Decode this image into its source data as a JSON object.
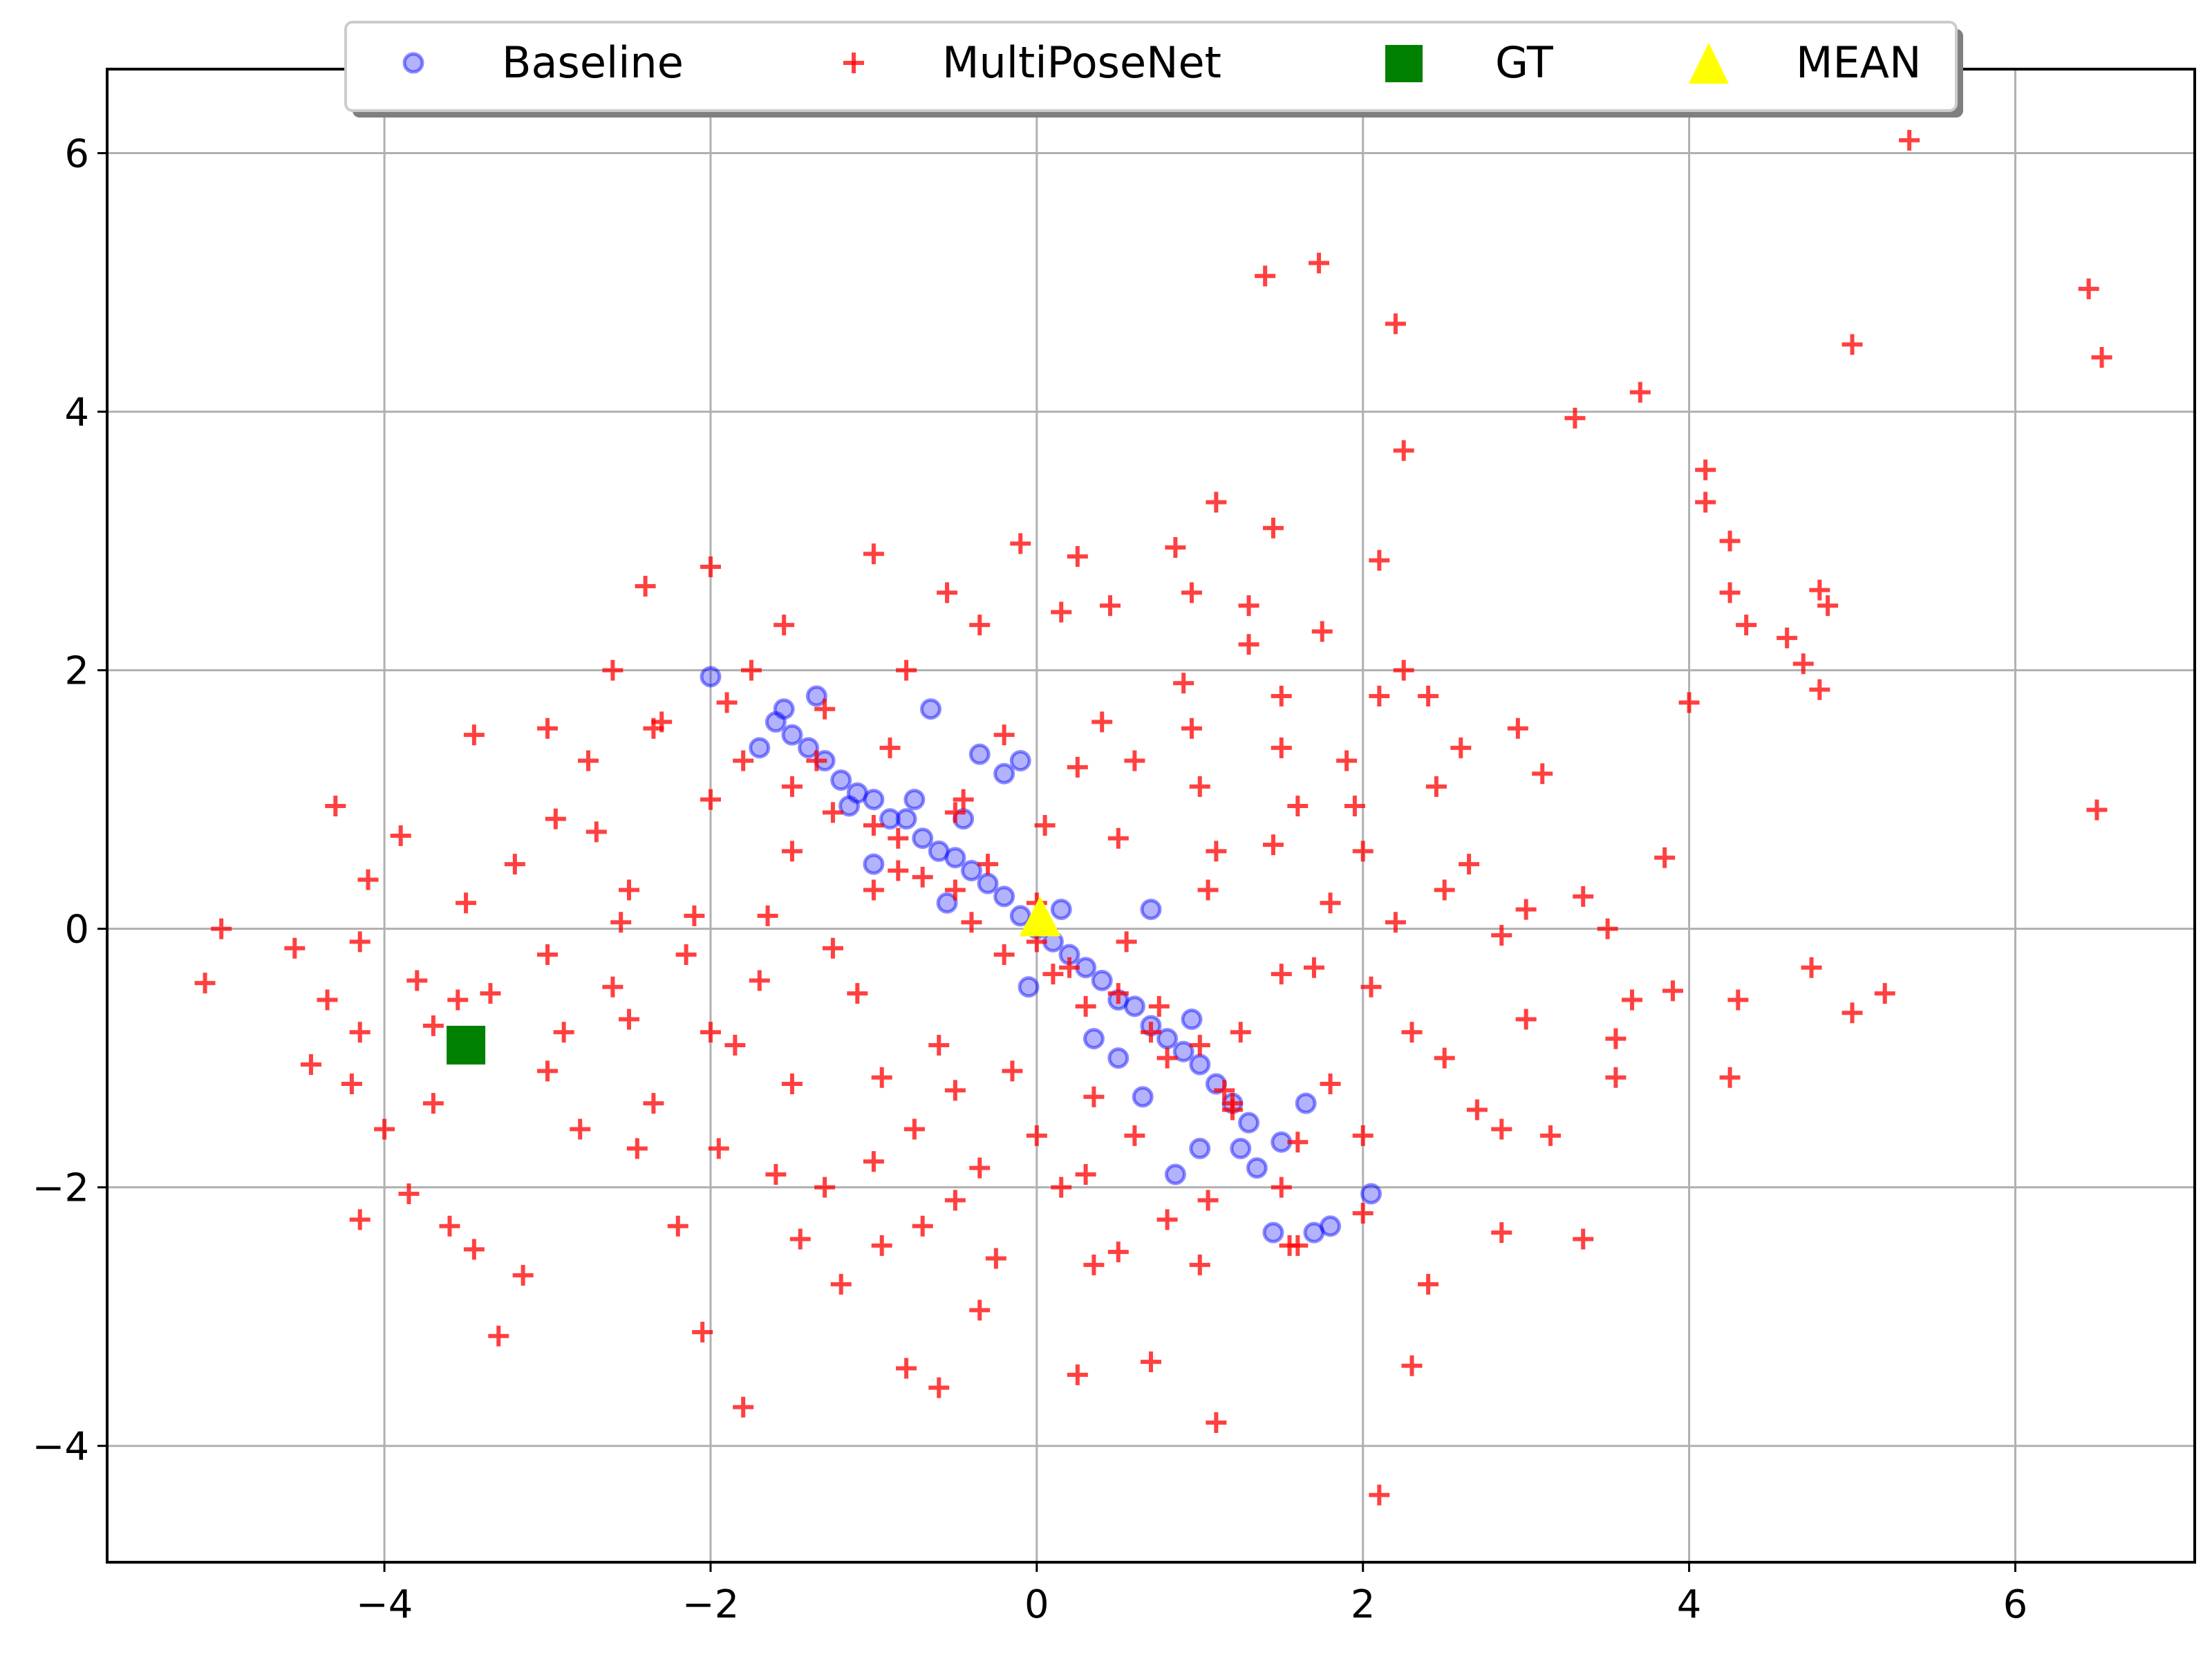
{
  "chart_data": {
    "type": "scatter",
    "title": "",
    "xlabel": "",
    "ylabel": "",
    "xlim": [
      -5.7,
      7.1
    ],
    "ylim": [
      -4.9,
      6.65
    ],
    "xticks": [
      -4,
      -2,
      0,
      2,
      4,
      6
    ],
    "yticks": [
      -4,
      -2,
      0,
      2,
      4,
      6
    ],
    "xtick_labels": [
      "−4",
      "−2",
      "0",
      "2",
      "4",
      "6"
    ],
    "ytick_labels": [
      "−4",
      "−2",
      "0",
      "2",
      "4",
      "6"
    ],
    "grid": true,
    "legend_position": "top-center",
    "legend": [
      "Baseline",
      "MultiPoseNet",
      "GT",
      "MEAN"
    ],
    "series": [
      {
        "name": "Baseline",
        "marker": "circle",
        "color": "#0000ff",
        "alpha": 0.3,
        "points": [
          [
            -2.0,
            1.95
          ],
          [
            -1.6,
            1.6
          ],
          [
            -1.5,
            1.5
          ],
          [
            -1.4,
            1.4
          ],
          [
            -1.55,
            1.7
          ],
          [
            -1.3,
            1.3
          ],
          [
            -1.2,
            1.15
          ],
          [
            -1.1,
            1.05
          ],
          [
            -1.0,
            1.0
          ],
          [
            -0.9,
            0.85
          ],
          [
            -0.8,
            0.85
          ],
          [
            -0.7,
            0.7
          ],
          [
            -0.6,
            0.6
          ],
          [
            -0.5,
            0.55
          ],
          [
            -0.4,
            0.45
          ],
          [
            -0.3,
            0.35
          ],
          [
            -0.2,
            0.25
          ],
          [
            -0.1,
            0.1
          ],
          [
            0.0,
            0.0
          ],
          [
            0.1,
            -0.1
          ],
          [
            0.2,
            -0.2
          ],
          [
            0.3,
            -0.3
          ],
          [
            0.4,
            -0.4
          ],
          [
            0.5,
            -0.55
          ],
          [
            0.6,
            -0.6
          ],
          [
            0.7,
            -0.75
          ],
          [
            0.8,
            -0.85
          ],
          [
            0.9,
            -0.95
          ],
          [
            1.0,
            -1.05
          ],
          [
            1.1,
            -1.2
          ],
          [
            1.2,
            -1.35
          ],
          [
            1.3,
            -1.5
          ],
          [
            1.35,
            -1.85
          ],
          [
            1.45,
            -2.35
          ],
          [
            1.7,
            -2.35
          ],
          [
            1.8,
            -2.3
          ],
          [
            2.05,
            -2.05
          ],
          [
            -1.35,
            1.8
          ],
          [
            -0.65,
            1.7
          ],
          [
            -0.35,
            1.35
          ],
          [
            -0.1,
            1.3
          ],
          [
            0.7,
            0.15
          ],
          [
            0.85,
            -1.9
          ],
          [
            1.0,
            -1.7
          ],
          [
            1.65,
            -1.35
          ],
          [
            1.5,
            -1.65
          ],
          [
            -0.2,
            1.2
          ],
          [
            -1.7,
            1.4
          ],
          [
            -1.0,
            0.5
          ],
          [
            0.5,
            -1.0
          ],
          [
            -0.75,
            1.0
          ],
          [
            0.35,
            -0.85
          ],
          [
            0.15,
            0.15
          ],
          [
            -0.55,
            0.2
          ],
          [
            0.65,
            -1.3
          ],
          [
            1.25,
            -1.7
          ],
          [
            -0.05,
            -0.45
          ],
          [
            -0.45,
            0.85
          ],
          [
            0.95,
            -0.7
          ],
          [
            -1.15,
            0.95
          ]
        ]
      },
      {
        "name": "MultiPoseNet",
        "marker": "plus",
        "color": "#ff0000",
        "alpha": 0.75,
        "points": [
          [
            5.35,
            6.1
          ],
          [
            1.4,
            5.05
          ],
          [
            1.73,
            5.15
          ],
          [
            2.2,
            4.68
          ],
          [
            5.0,
            4.52
          ],
          [
            6.45,
            4.95
          ],
          [
            6.53,
            4.42
          ],
          [
            3.7,
            4.15
          ],
          [
            3.3,
            3.95
          ],
          [
            2.25,
            3.7
          ],
          [
            4.1,
            3.55
          ],
          [
            4.1,
            3.3
          ],
          [
            4.25,
            3.0
          ],
          [
            1.1,
            3.3
          ],
          [
            1.45,
            3.1
          ],
          [
            2.1,
            2.85
          ],
          [
            4.25,
            2.6
          ],
          [
            4.8,
            2.62
          ],
          [
            4.85,
            2.5
          ],
          [
            4.35,
            2.35
          ],
          [
            4.6,
            2.25
          ],
          [
            4.7,
            2.05
          ],
          [
            4.8,
            1.85
          ],
          [
            6.5,
            0.92
          ],
          [
            5.2,
            -0.5
          ],
          [
            5.0,
            -0.65
          ],
          [
            4.75,
            -0.3
          ],
          [
            4.3,
            -0.55
          ],
          [
            4.25,
            -1.15
          ],
          [
            3.85,
            0.55
          ],
          [
            3.9,
            -0.48
          ],
          [
            3.55,
            -0.85
          ],
          [
            3.55,
            -1.15
          ],
          [
            3.35,
            0.25
          ],
          [
            3.35,
            -2.4
          ],
          [
            3.15,
            -1.6
          ],
          [
            2.85,
            -2.35
          ],
          [
            2.4,
            -2.75
          ],
          [
            2.3,
            -3.38
          ],
          [
            2.1,
            -4.38
          ],
          [
            1.1,
            -3.82
          ],
          [
            0.7,
            -3.35
          ],
          [
            -0.6,
            -3.55
          ],
          [
            -0.8,
            -3.4
          ],
          [
            -1.8,
            -3.7
          ],
          [
            -2.05,
            -3.12
          ],
          [
            -3.3,
            -3.15
          ],
          [
            -3.15,
            -2.68
          ],
          [
            -3.45,
            -2.48
          ],
          [
            -4.15,
            -2.25
          ],
          [
            -3.85,
            -2.05
          ],
          [
            -5.1,
            -0.42
          ],
          [
            -5.0,
            0.0
          ],
          [
            -4.45,
            -1.05
          ],
          [
            -4.2,
            -1.2
          ],
          [
            -4.3,
            0.95
          ],
          [
            -3.9,
            0.72
          ],
          [
            -3.45,
            1.5
          ],
          [
            -3.0,
            1.55
          ],
          [
            -2.4,
            2.65
          ],
          [
            -2.0,
            2.8
          ],
          [
            -1.0,
            2.9
          ],
          [
            -0.1,
            2.98
          ],
          [
            0.25,
            2.88
          ],
          [
            0.45,
            2.5
          ],
          [
            0.85,
            2.95
          ],
          [
            1.75,
            2.3
          ],
          [
            2.25,
            2.0
          ],
          [
            1.3,
            2.5
          ],
          [
            1.5,
            1.8
          ],
          [
            2.95,
            1.55
          ],
          [
            2.6,
            1.4
          ],
          [
            -0.55,
            2.6
          ],
          [
            -1.55,
            2.35
          ],
          [
            -2.6,
            2.0
          ],
          [
            -1.75,
            2.0
          ],
          [
            -0.35,
            2.35
          ],
          [
            0.15,
            2.45
          ],
          [
            0.95,
            2.6
          ],
          [
            -4.55,
            -0.15
          ],
          [
            -3.7,
            -1.35
          ],
          [
            -3.0,
            -1.1
          ],
          [
            -2.5,
            -0.7
          ],
          [
            -2.0,
            -0.8
          ],
          [
            -1.5,
            -1.2
          ],
          [
            -1.0,
            -1.8
          ],
          [
            -0.5,
            -2.1
          ],
          [
            0.0,
            -1.6
          ],
          [
            0.5,
            -2.5
          ],
          [
            1.0,
            -2.6
          ],
          [
            1.5,
            -2.0
          ],
          [
            2.0,
            -1.6
          ],
          [
            2.5,
            -1.0
          ],
          [
            3.0,
            -0.7
          ],
          [
            -3.5,
            0.2
          ],
          [
            -3.0,
            -0.2
          ],
          [
            -2.5,
            0.3
          ],
          [
            -2.0,
            1.0
          ],
          [
            -1.5,
            0.6
          ],
          [
            -1.0,
            0.3
          ],
          [
            -0.5,
            0.9
          ],
          [
            0.0,
            0.2
          ],
          [
            0.5,
            0.7
          ],
          [
            1.0,
            1.1
          ],
          [
            1.5,
            1.4
          ],
          [
            2.0,
            0.6
          ],
          [
            2.5,
            0.3
          ],
          [
            3.0,
            0.15
          ],
          [
            -2.8,
            -1.55
          ],
          [
            -2.2,
            -2.3
          ],
          [
            -1.6,
            -1.9
          ],
          [
            -1.2,
            -2.75
          ],
          [
            -0.7,
            -2.3
          ],
          [
            -0.25,
            -2.55
          ],
          [
            0.3,
            -1.9
          ],
          [
            0.8,
            -2.25
          ],
          [
            1.2,
            -1.35
          ],
          [
            1.8,
            -1.2
          ],
          [
            2.3,
            -0.8
          ],
          [
            2.7,
            -1.4
          ],
          [
            -2.3,
            1.6
          ],
          [
            -1.8,
            1.3
          ],
          [
            -1.3,
            1.7
          ],
          [
            -0.8,
            2.0
          ],
          [
            -0.2,
            1.5
          ],
          [
            0.4,
            1.6
          ],
          [
            0.9,
            1.9
          ],
          [
            1.3,
            2.2
          ],
          [
            1.9,
            1.3
          ],
          [
            2.4,
            1.8
          ],
          [
            -3.2,
            0.5
          ],
          [
            -2.7,
            0.75
          ],
          [
            -2.1,
            0.1
          ],
          [
            -1.7,
            -0.4
          ],
          [
            -1.1,
            -0.5
          ],
          [
            -0.6,
            -0.9
          ],
          [
            -0.15,
            -1.1
          ],
          [
            0.35,
            -1.3
          ],
          [
            0.75,
            -0.6
          ],
          [
            1.25,
            -0.8
          ],
          [
            1.7,
            -0.3
          ],
          [
            2.2,
            0.05
          ],
          [
            2.65,
            0.5
          ],
          [
            -4.1,
            0.38
          ],
          [
            -3.8,
            -0.4
          ],
          [
            -2.9,
            -0.8
          ],
          [
            -2.35,
            -1.35
          ],
          [
            -1.95,
            -1.7
          ],
          [
            -1.45,
            -2.4
          ],
          [
            -0.95,
            -2.45
          ],
          [
            -0.35,
            -1.85
          ],
          [
            0.15,
            -2.0
          ],
          [
            0.6,
            -1.6
          ],
          [
            1.05,
            -2.1
          ],
          [
            1.55,
            -2.45
          ],
          [
            2.0,
            -2.2
          ],
          [
            -2.6,
            -0.45
          ],
          [
            -2.15,
            -0.2
          ],
          [
            -1.65,
            0.1
          ],
          [
            -1.25,
            -0.15
          ],
          [
            -0.85,
            0.45
          ],
          [
            -0.4,
            0.05
          ],
          [
            0.1,
            -0.35
          ],
          [
            0.55,
            -0.1
          ],
          [
            1.05,
            0.3
          ],
          [
            1.45,
            0.65
          ],
          [
            1.95,
            0.95
          ],
          [
            2.45,
            1.1
          ],
          [
            -0.9,
            1.4
          ],
          [
            -0.45,
            1.0
          ],
          [
            0.05,
            0.8
          ],
          [
            0.6,
            1.3
          ],
          [
            1.1,
            0.6
          ],
          [
            1.6,
            0.95
          ],
          [
            -1.25,
            0.9
          ],
          [
            -0.7,
            0.4
          ],
          [
            -0.2,
            -0.2
          ],
          [
            0.3,
            -0.6
          ],
          [
            0.8,
            -1.0
          ],
          [
            1.2,
            -1.4
          ],
          [
            -1.5,
            1.1
          ],
          [
            -1.0,
            0.8
          ],
          [
            -0.5,
            0.3
          ],
          [
            0.0,
            -0.1
          ],
          [
            0.5,
            -0.5
          ],
          [
            1.0,
            -0.9
          ],
          [
            -1.9,
            1.75
          ],
          [
            -1.35,
            1.3
          ],
          [
            -0.85,
            0.7
          ],
          [
            -0.3,
            0.5
          ],
          [
            0.2,
            -0.3
          ],
          [
            0.7,
            -0.8
          ],
          [
            1.15,
            -1.25
          ],
          [
            1.6,
            -1.65
          ],
          [
            -3.6,
            -2.3
          ],
          [
            -4.15,
            -0.8
          ],
          [
            -2.95,
            0.85
          ],
          [
            -3.55,
            -0.55
          ],
          [
            0.25,
            -3.45
          ],
          [
            -0.35,
            -2.95
          ],
          [
            1.6,
            -2.45
          ],
          [
            -4.0,
            -1.55
          ],
          [
            -4.35,
            -0.55
          ],
          [
            -4.15,
            -0.1
          ],
          [
            -3.35,
            -0.5
          ],
          [
            -2.55,
            0.05
          ],
          [
            -3.7,
            -0.75
          ],
          [
            -2.75,
            1.3
          ],
          [
            -2.35,
            1.55
          ],
          [
            3.1,
            1.2
          ],
          [
            3.5,
            0.0
          ],
          [
            2.85,
            -0.05
          ],
          [
            2.05,
            -0.45
          ],
          [
            1.5,
            -0.35
          ],
          [
            -0.75,
            -1.55
          ],
          [
            -1.3,
            -2.0
          ],
          [
            -0.5,
            -1.25
          ],
          [
            0.35,
            -2.6
          ],
          [
            0.95,
            1.55
          ],
          [
            0.25,
            1.25
          ],
          [
            -0.95,
            -1.15
          ],
          [
            -1.85,
            -0.9
          ],
          [
            -2.45,
            -1.7
          ],
          [
            2.85,
            -1.55
          ],
          [
            3.65,
            -0.55
          ],
          [
            2.1,
            1.8
          ],
          [
            4.0,
            1.75
          ],
          [
            1.8,
            0.2
          ]
        ]
      },
      {
        "name": "GT",
        "marker": "square",
        "color": "#008000",
        "alpha": 1,
        "points": [
          [
            -3.5,
            -0.9
          ]
        ]
      },
      {
        "name": "MEAN",
        "marker": "triangle",
        "color": "#ffff00",
        "alpha": 1,
        "points": [
          [
            0.02,
            0.07
          ]
        ]
      }
    ]
  }
}
